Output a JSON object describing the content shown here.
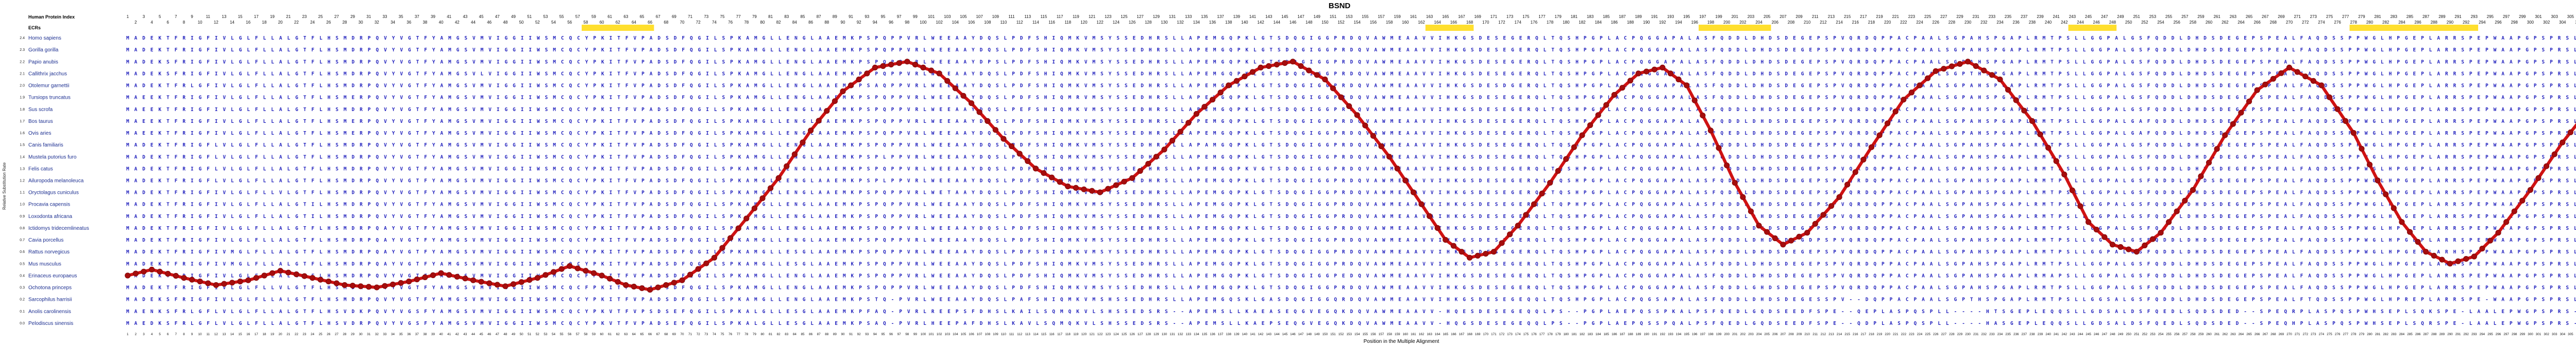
{
  "title": "BSND",
  "left_panel": {
    "ruler_label": "Human Protein Index",
    "ecr_label": "ECRs"
  },
  "axes": {
    "y_label": "Relative Substitution Rate",
    "x_label": "Position in the Multiple Alignment",
    "x_range": [
      1,
      318
    ],
    "y_ticks": [
      2.4,
      2.3,
      2.2,
      2.1,
      2.0,
      1.9,
      1.8,
      1.7,
      1.6,
      1.5,
      1.4,
      1.3,
      1.2,
      1.1,
      1.0,
      0.9,
      0.8,
      0.7,
      0.6,
      0.5,
      0.4,
      0.3,
      0.2,
      0.1,
      0.0
    ]
  },
  "colors": {
    "background": "#ffffff",
    "sequence_text": "#2323be",
    "species_text": "#1c2f91",
    "curve_line": "#cf1212",
    "curve_dot": "#a50d0d",
    "curve_dot_edge": "#7c0606",
    "ecr_band": "#ffdf2e",
    "ruler_text": "#111111",
    "axis_text": "#222222"
  },
  "ecr_regions": [
    {
      "start": 58,
      "end": 66
    },
    {
      "start": 163,
      "end": 168
    },
    {
      "start": 197,
      "end": 205
    },
    {
      "start": 243,
      "end": 248
    },
    {
      "start": 278,
      "end": 293
    }
  ],
  "alignment": {
    "length": 318,
    "consensus": "MADEKTFRIGFIVLGLFLLALGTFLHSMDRPQVYVGTFYAMGSVMVIGGIIWSMCQCYPKITFVPADSDFQGILSPKAMGLLENGLAAEMKPSPQPPVRLWEEAAYDQSLPDFSHIQMKVMSYSSEDHRSLLAPEMGQPKLGTSDQGIGGPRDQVAWMEAAVVIHKGSDESEGERQLTQSHPGPLACPQGGAPALASFQDDLDHDSDEGEPSPVQRDQPPACPAALSGPAHSPGAPLRMTPSLLGGPALGSFQDDLDHDSDEGEPSPEALFAQDSSPPWGLHPGEPLARRSPEPWAAPGPSPRSLSAEAWPLLTPVES",
    "rows": [
      {
        "species": "Homo sapiens"
      },
      {
        "species": "Gorilla gorilla"
      },
      {
        "species": "Papio anubis",
        "edits": {
          "6": "S",
          "108": "P"
        }
      },
      {
        "species": "Callithrix jacchus",
        "edits": {
          "6": "S",
          "45": "L",
          "230": "T"
        }
      },
      {
        "species": "Otolemur garnettii",
        "edits": {
          "9": "L",
          "94": "A",
          "172": "D"
        }
      },
      {
        "species": "Tursiops truncatus",
        "edits": {
          "3": "E",
          "29": "E",
          "119": "R"
        }
      },
      {
        "species": "Sus scrofa",
        "edits": {
          "3": "E",
          "112": "E"
        }
      },
      {
        "species": "Bos taurus",
        "edits": {
          "3": "E",
          "29": "E",
          "251": "A"
        }
      },
      {
        "species": "Ovis aries",
        "edits": {
          "3": "E",
          "29": "E",
          "200": "E",
          "251": "A"
        }
      },
      {
        "species": "Canis familiaris",
        "edits": {
          "12": "L",
          "135": "A"
        }
      },
      {
        "species": "Mustela putorius furo",
        "edits": {
          "12": "L",
          "95": "L",
          "264": "G"
        }
      },
      {
        "species": "Felis catus",
        "edits": {
          "12": "L",
          "141": "V"
        }
      },
      {
        "species": "Ailuropoda melanoleuca",
        "edits": {
          "12": "L",
          "95": "L"
        }
      },
      {
        "species": "Oryctolagus cuniculus",
        "edits": {
          "20": "V",
          "103": "T"
        }
      },
      {
        "species": "Procavia capensis",
        "edits": {
          "24": "I",
          "180": "P",
          "299": "S"
        }
      },
      {
        "species": "Loxodonta africana",
        "edits": {
          "24": "I",
          "163": "A"
        }
      },
      {
        "species": "Ictidomys tridecemlineatus",
        "edits": {
          "33": "A",
          "127": "E"
        }
      },
      {
        "species": "Cavia porcellus",
        "edits": {
          "33": "A",
          "76": "T",
          "210": "D"
        }
      },
      {
        "species": "Rattus norvegicus",
        "edits": {
          "14": "M",
          "33": "A",
          "84": "S",
          "290": "H"
        }
      },
      {
        "species": "Mus musculus",
        "edits": {
          "14": "M",
          "33": "A",
          "84": "S"
        }
      },
      {
        "species": "Erinaceus europaeus",
        "edits": {
          "7": "L",
          "58": "F",
          "152": "E",
          "240": "A"
        }
      },
      {
        "species": "Ochotona princeps",
        "edits": {
          "20": "V",
          "58": "F",
          "203": "G"
        }
      },
      {
        "species": "Sarcophilus harrisii",
        "seq": "MADEKSFRIGFIVLGLFLLALGTFLHSMDRPQVYVGTFYAMGSVMVIGGIIWSMCQCYPKITFVPADSDFQGILSPKAMGLLENGLAAEMKPSTQ-PVRLWEEAAYDQSLPAFSHIQMKVMSHSSEDHRSLLAPEMGQSKLGASDQGIGGQRDQVAWMEAAVVIHKGSDESEGEQQLTQSHPGPLACPQGSAPALASFQDDLDHDSDEGESSPV--DQPPACPAALSGPTHSPGAPLRMTPSLLGGSALGSFQDDLDHDSDEGEPSPEALFTQDSSPPWGLHPREPLARRSPE-WAAPGPSPRSLSAEAWPLLAPVES"
      },
      {
        "species": "Anolis carolinensis",
        "seq": "MAENKSFRLGFLVLGLFLLALGTFLHSVDKPQVYVGSFYAMGSVMVIGGIIWSMCQCYPKVTFVPSDSEFQGILSPKALGLLESGLAAEMKPFAQ-PVRLREEPSFDHSLKAILSQMQKVLSHSSEDSRS--APEMSLLKAEASEQGVEGQKDQVAWMEAAVV-HQESDESEGEQQLPS--PGPLAEPQSSPKALPSFQEDLGQDSEEDFSPE--QEPLASPQSPLL----HTSGEPLEQQSLLGDSALDSFQEDLSQDSDED--SPEQRPLASPQSPWHSEPLSQKSPE-LAALEPWGPSPRS-AEDWPLLA-PMES"
      },
      {
        "species": "Pelodiscus sinensis",
        "seq": "MAEDKSFRLGFLVLGLFLLALGTFLHSVDRPQVYVGSFYAMGSVMVIGGIIWSMCQCYPKVTFVPADSEFQGILSPKALGLLESGLAAEMKPSAQ-PVRLHEEPAFDHSLKAVLSQMQKVLSHSSEDSRS--APEMSLLKAEPSEQGVEGQKDQVAWMEAAVV-HQGSDESEGEQQLPS--PGPLAEPQSSPQALPSFQEDLGQDSEEDFSPE--QDPLASPQSPLL----HASGEPLEQQSLLGDSALDSFQEDLSQDSDED--SPEQHPLASPQSPWHSEPLSQRSPE-LAALEPWGPSPRS-AEDWPLLA-PMES"
      }
    ]
  },
  "chart_data": {
    "type": "line",
    "title": "BSND",
    "xlabel": "Position in the Multiple Alignment",
    "ylabel": "Relative Substitution Rate",
    "xlim": [
      1,
      318
    ],
    "ylim": [
      0.0,
      2.4
    ],
    "legend": "none",
    "grid": "off",
    "marker": "filled circle at every integer alignment position (linear interpolation between control points)",
    "ecr_highlight_color": "#ffdf2e",
    "points": [
      [
        1,
        0.4
      ],
      [
        4,
        0.45
      ],
      [
        8,
        0.38
      ],
      [
        12,
        0.32
      ],
      [
        16,
        0.36
      ],
      [
        20,
        0.44
      ],
      [
        24,
        0.38
      ],
      [
        28,
        0.32
      ],
      [
        32,
        0.3
      ],
      [
        36,
        0.35
      ],
      [
        40,
        0.42
      ],
      [
        44,
        0.36
      ],
      [
        48,
        0.31
      ],
      [
        52,
        0.38
      ],
      [
        56,
        0.48
      ],
      [
        60,
        0.4
      ],
      [
        63,
        0.32
      ],
      [
        66,
        0.28
      ],
      [
        70,
        0.36
      ],
      [
        74,
        0.55
      ],
      [
        78,
        0.88
      ],
      [
        82,
        1.22
      ],
      [
        86,
        1.62
      ],
      [
        90,
        1.95
      ],
      [
        94,
        2.15
      ],
      [
        98,
        2.2
      ],
      [
        102,
        2.1
      ],
      [
        106,
        1.85
      ],
      [
        110,
        1.55
      ],
      [
        114,
        1.3
      ],
      [
        118,
        1.15
      ],
      [
        122,
        1.1
      ],
      [
        126,
        1.22
      ],
      [
        130,
        1.46
      ],
      [
        134,
        1.76
      ],
      [
        138,
        2.0
      ],
      [
        142,
        2.15
      ],
      [
        146,
        2.2
      ],
      [
        150,
        2.05
      ],
      [
        154,
        1.75
      ],
      [
        158,
        1.4
      ],
      [
        162,
        1.0
      ],
      [
        165,
        0.7
      ],
      [
        168,
        0.55
      ],
      [
        171,
        0.6
      ],
      [
        174,
        0.82
      ],
      [
        178,
        1.18
      ],
      [
        182,
        1.58
      ],
      [
        186,
        1.92
      ],
      [
        189,
        2.1
      ],
      [
        192,
        2.15
      ],
      [
        195,
        2.0
      ],
      [
        198,
        1.62
      ],
      [
        201,
        1.18
      ],
      [
        204,
        0.82
      ],
      [
        207,
        0.66
      ],
      [
        210,
        0.76
      ],
      [
        214,
        1.06
      ],
      [
        218,
        1.48
      ],
      [
        222,
        1.88
      ],
      [
        226,
        2.12
      ],
      [
        230,
        2.2
      ],
      [
        234,
        2.05
      ],
      [
        238,
        1.7
      ],
      [
        242,
        1.25
      ],
      [
        245,
        0.85
      ],
      [
        248,
        0.66
      ],
      [
        251,
        0.6
      ],
      [
        254,
        0.76
      ],
      [
        258,
        1.12
      ],
      [
        262,
        1.58
      ],
      [
        266,
        1.96
      ],
      [
        270,
        2.15
      ],
      [
        274,
        2.0
      ],
      [
        278,
        1.6
      ],
      [
        281,
        1.2
      ],
      [
        284,
        0.85
      ],
      [
        287,
        0.6
      ],
      [
        290,
        0.5
      ],
      [
        293,
        0.56
      ],
      [
        296,
        0.76
      ],
      [
        300,
        1.12
      ],
      [
        304,
        1.52
      ],
      [
        308,
        1.86
      ],
      [
        312,
        2.06
      ],
      [
        315,
        2.1
      ],
      [
        318,
        2.0
      ]
    ]
  }
}
